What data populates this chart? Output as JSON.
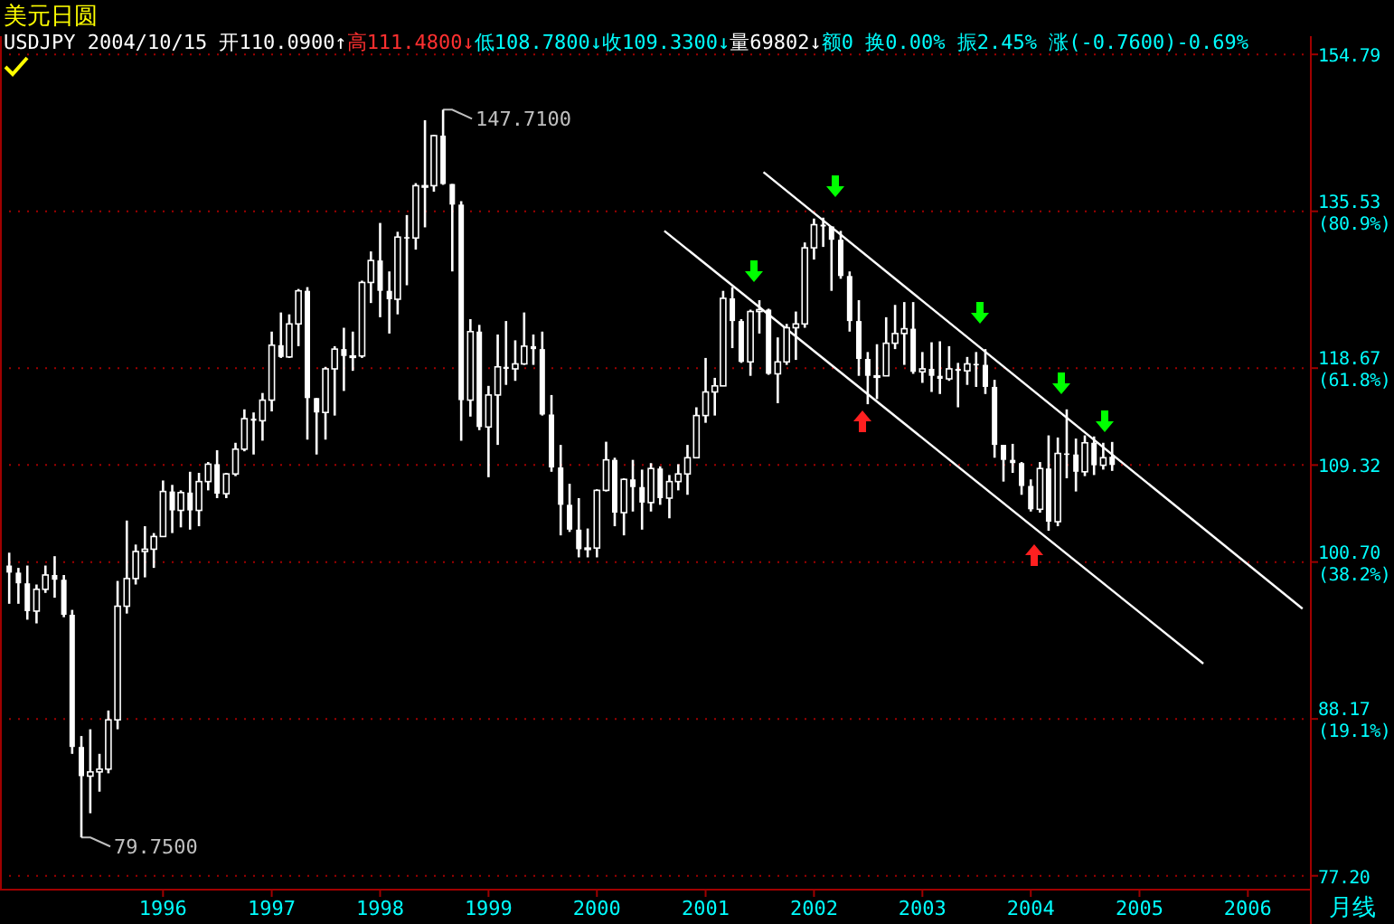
{
  "chart_data": {
    "type": "candlestick",
    "title": "美元日圆",
    "subtitle": "USDJPY 2004/10/15 开110.0900↑高111.4800↓低108.7800↓收109.3300↓量69802↓额0 换0.00% 振2.45% 涨(-0.7600)-0.69%",
    "color": "#ffffff",
    "log": true,
    "grid": "y",
    "xlim": [
      "1994-07",
      "2006-08"
    ],
    "xticks": [
      "1996",
      "1997",
      "1998",
      "1999",
      "2000",
      "2001",
      "2002",
      "2003",
      "2004",
      "2005",
      "2006"
    ],
    "ylim": [
      76.3,
      157.2
    ],
    "yticks": [
      154.79,
      {
        "value": 135.53,
        "label": "135.53\n(80.9%)"
      },
      {
        "value": 118.67,
        "label": "118.67\n(61.8%)"
      },
      109.32,
      {
        "value": 100.7,
        "label": "100.70\n(38.2%)"
      },
      {
        "value": 88.17,
        "label": "88.17\n(19.1%)"
      },
      {
        "value": 77.2,
        "label": "77.20"
      }
    ],
    "annotations": [
      "月线",
      {
        "text": "147.7100",
        "x": "1998-08",
        "y": 147.71
      },
      {
        "text": "79.7500",
        "x": "1995-04",
        "y": 79.75
      }
    ],
    "x": [
      "1994-08",
      "1994-09",
      "1994-10",
      "1994-11",
      "1994-12",
      "1995-01",
      "1995-02",
      "1995-03",
      "1995-04",
      "1995-05",
      "1995-06",
      "1995-07",
      "1995-08",
      "1995-09",
      "1995-10",
      "1995-11",
      "1995-12",
      "1996-01",
      "1996-02",
      "1996-03",
      "1996-04",
      "1996-05",
      "1996-06",
      "1996-07",
      "1996-08",
      "1996-09",
      "1996-10",
      "1996-11",
      "1996-12",
      "1997-01",
      "1997-02",
      "1997-03",
      "1997-04",
      "1997-05",
      "1997-06",
      "1997-07",
      "1997-08",
      "1997-09",
      "1997-10",
      "1997-11",
      "1997-12",
      "1998-01",
      "1998-02",
      "1998-03",
      "1998-04",
      "1998-05",
      "1998-06",
      "1998-07",
      "1998-08",
      "1998-09",
      "1998-10",
      "1998-11",
      "1998-12",
      "1999-01",
      "1999-02",
      "1999-03",
      "1999-04",
      "1999-05",
      "1999-06",
      "1999-07",
      "1999-08",
      "1999-09",
      "1999-10",
      "1999-11",
      "1999-12",
      "2000-01",
      "2000-02",
      "2000-03",
      "2000-04",
      "2000-05",
      "2000-06",
      "2000-07",
      "2000-08",
      "2000-09",
      "2000-10",
      "2000-11",
      "2000-12",
      "2001-01",
      "2001-02",
      "2001-03",
      "2001-04",
      "2001-05",
      "2001-06",
      "2001-07",
      "2001-08",
      "2001-09",
      "2001-10",
      "2001-11",
      "2001-12",
      "2002-01",
      "2002-02",
      "2002-03",
      "2002-04",
      "2002-05",
      "2002-06",
      "2002-07",
      "2002-08",
      "2002-09",
      "2002-10",
      "2002-11",
      "2002-12",
      "2003-01",
      "2003-02",
      "2003-03",
      "2003-04",
      "2003-05",
      "2003-06",
      "2003-07",
      "2003-08",
      "2003-09",
      "2003-10",
      "2003-11",
      "2003-12",
      "2004-01",
      "2004-02",
      "2004-03",
      "2004-04",
      "2004-05",
      "2004-06",
      "2004-07",
      "2004-08",
      "2004-09",
      "2004-10"
    ],
    "ohlc": [
      [
        100.4,
        101.5,
        97.2,
        99.8
      ],
      [
        99.8,
        100.2,
        97.2,
        98.9
      ],
      [
        98.9,
        100.4,
        95.9,
        96.6
      ],
      [
        96.6,
        98.8,
        95.6,
        98.4
      ],
      [
        98.4,
        100.4,
        98.1,
        99.6
      ],
      [
        99.6,
        101.2,
        97.7,
        99.2
      ],
      [
        99.2,
        99.6,
        96.1,
        96.3
      ],
      [
        96.3,
        96.7,
        85.6,
        86.1
      ],
      [
        86.1,
        86.9,
        79.75,
        84.0
      ],
      [
        84.0,
        87.4,
        81.4,
        84.3
      ],
      [
        84.3,
        85.6,
        82.9,
        84.5
      ],
      [
        84.5,
        88.8,
        84.2,
        88.1
      ],
      [
        88.1,
        99.1,
        87.4,
        97.0
      ],
      [
        97.0,
        104.3,
        96.4,
        99.3
      ],
      [
        99.3,
        102.2,
        98.8,
        101.6
      ],
      [
        101.6,
        103.8,
        99.4,
        101.8
      ],
      [
        101.8,
        103.2,
        100.2,
        102.9
      ],
      [
        102.9,
        107.9,
        102.9,
        106.9
      ],
      [
        106.9,
        107.5,
        103.2,
        105.2
      ],
      [
        105.2,
        107.0,
        103.7,
        106.8
      ],
      [
        106.8,
        108.7,
        103.5,
        105.2
      ],
      [
        105.2,
        108.6,
        103.8,
        107.8
      ],
      [
        107.8,
        109.6,
        107.0,
        109.4
      ],
      [
        109.4,
        110.7,
        106.3,
        106.7
      ],
      [
        106.7,
        108.6,
        106.3,
        108.5
      ],
      [
        108.5,
        111.4,
        108.3,
        110.8
      ],
      [
        110.8,
        114.6,
        110.6,
        113.7
      ],
      [
        113.7,
        114.3,
        110.3,
        113.5
      ],
      [
        113.5,
        116.2,
        111.6,
        115.5
      ],
      [
        115.5,
        122.4,
        114.4,
        121.0
      ],
      [
        121.0,
        124.4,
        119.7,
        119.8
      ],
      [
        119.8,
        124.2,
        119.7,
        123.2
      ],
      [
        123.2,
        126.9,
        120.9,
        126.7
      ],
      [
        126.7,
        127.1,
        111.7,
        115.7
      ],
      [
        115.7,
        115.7,
        110.3,
        114.3
      ],
      [
        114.3,
        118.8,
        111.7,
        118.6
      ],
      [
        118.6,
        120.9,
        114.0,
        120.6
      ],
      [
        120.6,
        122.8,
        116.4,
        119.9
      ],
      [
        119.9,
        122.4,
        118.4,
        119.9
      ],
      [
        119.9,
        127.8,
        119.7,
        127.6
      ],
      [
        127.6,
        131.0,
        125.4,
        130.0
      ],
      [
        130.0,
        134.2,
        123.9,
        126.7
      ],
      [
        126.7,
        128.8,
        122.2,
        125.8
      ],
      [
        125.8,
        133.2,
        124.2,
        132.6
      ],
      [
        132.6,
        135.1,
        127.3,
        132.5
      ],
      [
        132.5,
        138.8,
        131.2,
        138.5
      ],
      [
        138.5,
        146.4,
        133.7,
        138.5
      ],
      [
        138.5,
        144.6,
        137.8,
        144.5
      ],
      [
        144.5,
        147.71,
        138.6,
        138.7
      ],
      [
        138.7,
        138.7,
        128.8,
        136.3
      ],
      [
        136.3,
        136.7,
        111.6,
        115.5
      ],
      [
        115.5,
        123.7,
        113.9,
        122.4
      ],
      [
        122.4,
        123.1,
        112.6,
        112.9
      ],
      [
        112.9,
        116.9,
        108.2,
        116.0
      ],
      [
        116.0,
        122.1,
        111.2,
        118.8
      ],
      [
        118.8,
        123.5,
        117.0,
        118.6
      ],
      [
        118.6,
        121.5,
        117.4,
        119.1
      ],
      [
        119.1,
        124.4,
        119.0,
        120.9
      ],
      [
        120.9,
        122.1,
        119.0,
        120.6
      ],
      [
        120.6,
        122.4,
        114.0,
        114.1
      ],
      [
        114.1,
        116.0,
        108.7,
        109.1
      ],
      [
        109.1,
        111.2,
        103.0,
        105.7
      ],
      [
        105.7,
        107.6,
        103.3,
        103.5
      ],
      [
        103.5,
        106.3,
        101.1,
        101.8
      ],
      [
        101.8,
        103.6,
        101.1,
        101.9
      ],
      [
        101.9,
        107.1,
        101.1,
        107.0
      ],
      [
        107.0,
        111.5,
        106.9,
        109.8
      ],
      [
        109.8,
        110.0,
        103.8,
        105.0
      ],
      [
        105.0,
        108.1,
        103.0,
        108.0
      ],
      [
        108.0,
        109.8,
        105.1,
        107.3
      ],
      [
        107.3,
        108.9,
        103.5,
        105.9
      ],
      [
        105.9,
        109.5,
        105.1,
        109.0
      ],
      [
        109.0,
        109.2,
        105.7,
        106.3
      ],
      [
        106.3,
        108.4,
        104.5,
        107.8
      ],
      [
        107.8,
        109.4,
        107.0,
        108.5
      ],
      [
        108.5,
        111.2,
        106.6,
        110.0
      ],
      [
        110.0,
        114.8,
        110.0,
        114.0
      ],
      [
        114.0,
        119.7,
        113.3,
        116.3
      ],
      [
        116.3,
        117.7,
        114.0,
        116.9
      ],
      [
        116.9,
        126.7,
        116.9,
        125.9
      ],
      [
        125.9,
        127.1,
        120.7,
        123.5
      ],
      [
        123.5,
        123.7,
        119.2,
        119.3
      ],
      [
        119.3,
        124.7,
        117.9,
        124.5
      ],
      [
        124.5,
        125.7,
        122.2,
        124.7
      ],
      [
        124.7,
        124.8,
        118.0,
        118.1
      ],
      [
        118.1,
        121.8,
        115.2,
        119.3
      ],
      [
        119.3,
        123.2,
        119.0,
        122.8
      ],
      [
        122.8,
        124.5,
        119.5,
        123.2
      ],
      [
        123.2,
        132.0,
        122.8,
        131.4
      ],
      [
        131.4,
        134.7,
        130.1,
        134.0
      ],
      [
        134.0,
        134.8,
        131.5,
        133.8
      ],
      [
        133.8,
        133.8,
        126.7,
        132.3
      ],
      [
        132.3,
        133.3,
        128.0,
        128.3
      ],
      [
        128.3,
        128.8,
        122.4,
        123.5
      ],
      [
        123.5,
        125.7,
        117.9,
        119.6
      ],
      [
        119.6,
        120.3,
        115.1,
        117.9
      ],
      [
        117.9,
        121.1,
        115.6,
        117.9
      ],
      [
        117.9,
        123.9,
        117.9,
        121.2
      ],
      [
        121.2,
        125.2,
        120.6,
        122.2
      ],
      [
        122.2,
        125.5,
        119.0,
        122.7
      ],
      [
        122.7,
        125.5,
        118.1,
        118.3
      ],
      [
        118.3,
        120.3,
        117.2,
        118.6
      ],
      [
        118.6,
        121.3,
        116.3,
        117.9
      ],
      [
        117.9,
        121.4,
        116.1,
        117.6
      ],
      [
        117.6,
        120.9,
        117.4,
        118.6
      ],
      [
        118.6,
        119.2,
        114.8,
        118.4
      ],
      [
        118.4,
        119.8,
        117.0,
        119.1
      ],
      [
        119.1,
        120.3,
        116.8,
        119.0
      ],
      [
        119.0,
        120.6,
        116.1,
        116.8
      ],
      [
        116.8,
        117.5,
        110.0,
        111.2
      ],
      [
        111.2,
        111.2,
        107.8,
        109.8
      ],
      [
        109.8,
        111.3,
        108.6,
        109.5
      ],
      [
        109.5,
        109.6,
        106.6,
        107.4
      ],
      [
        107.4,
        108.0,
        105.1,
        105.3
      ],
      [
        105.3,
        109.6,
        105.0,
        109.0
      ],
      [
        109.0,
        112.1,
        103.4,
        104.2
      ],
      [
        104.2,
        111.9,
        103.8,
        110.4
      ],
      [
        110.4,
        114.6,
        108.1,
        110.3
      ],
      [
        110.3,
        111.8,
        106.9,
        108.7
      ],
      [
        108.7,
        112.1,
        108.3,
        111.4
      ],
      [
        111.4,
        112.0,
        108.4,
        109.3
      ],
      [
        109.3,
        111.4,
        108.9,
        110.0
      ],
      [
        110.09,
        111.48,
        108.78,
        109.33
      ]
    ],
    "series": [
      {
        "type": "line",
        "color": "#ffffff",
        "x": [
          "2001-07-15",
          "2006-07-04"
        ],
        "values": [
          140.1,
          96.8
        ]
      },
      {
        "type": "line",
        "color": "#ffffff",
        "x": [
          "2000-08-15",
          "2005-08-04"
        ],
        "values": [
          133.3,
          92.4
        ]
      }
    ]
  }
}
